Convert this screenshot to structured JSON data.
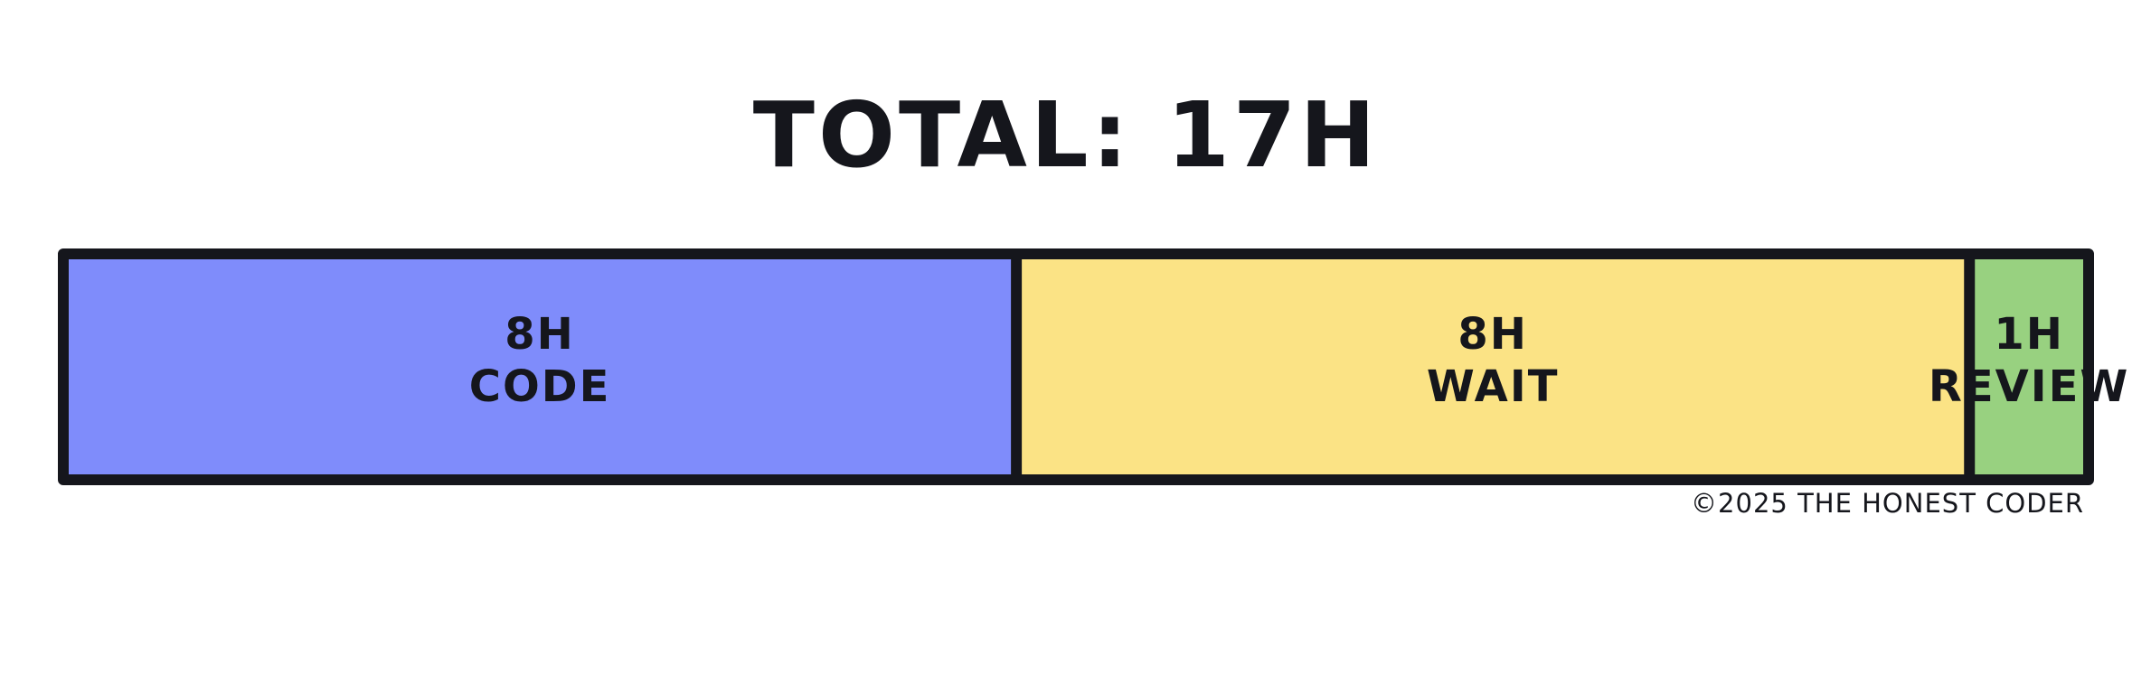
{
  "header": {
    "title": "TOTAL: 17H"
  },
  "footer": {
    "credit": "©2025 THE HONEST CODER"
  },
  "chart_data": {
    "type": "bar",
    "orientation": "horizontal-stacked",
    "title": "TOTAL: 17H",
    "unit": "H",
    "total": 17,
    "categories": [
      "CODE",
      "WAIT",
      "REVIEW"
    ],
    "values": [
      8,
      8,
      1
    ],
    "value_labels": [
      "8H",
      "8H",
      "1H"
    ],
    "colors": [
      "#7f8cfb",
      "#fbe385",
      "#98d180"
    ],
    "outline_color": "#15161c",
    "grid": false,
    "legend": "none"
  }
}
